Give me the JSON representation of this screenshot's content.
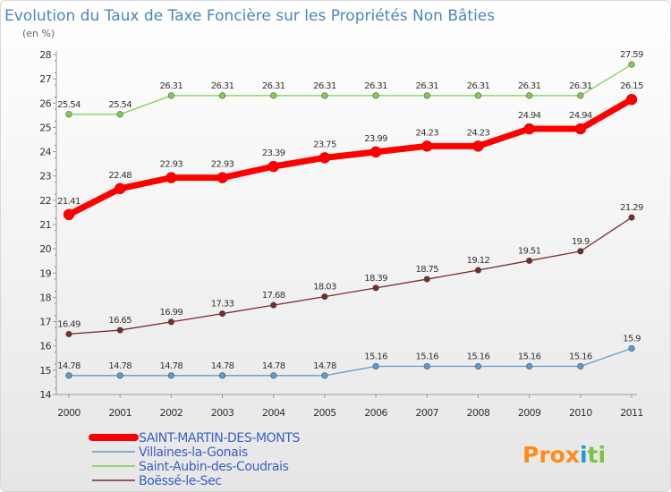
{
  "chart_data": {
    "type": "line",
    "title": "Evolution du Taux de Taxe Foncière sur les Propriétés Non Bâties",
    "unit_label": "(en %)",
    "x": [
      "2000",
      "2001",
      "2002",
      "2003",
      "2004",
      "2005",
      "2006",
      "2007",
      "2008",
      "2009",
      "2010",
      "2011"
    ],
    "ylim": [
      14,
      28
    ],
    "yticks": [
      "14",
      "15",
      "16",
      "17",
      "18",
      "19",
      "20",
      "21",
      "22",
      "23",
      "24",
      "25",
      "26",
      "27",
      "28"
    ],
    "grid": false,
    "legend_position": "bottom-left",
    "series": [
      {
        "name": "SAINT-MARTIN-DES-MONTS",
        "color": "#ff0000",
        "values": [
          21.41,
          22.48,
          22.93,
          22.93,
          23.39,
          23.75,
          23.99,
          24.23,
          24.23,
          24.94,
          24.94,
          26.15
        ],
        "labels": [
          "21.41",
          "22.48",
          "22.93",
          "22.93",
          "23.39",
          "23.75",
          "23.99",
          "24.23",
          "24.23",
          "24.94",
          "24.94",
          "26.15"
        ]
      },
      {
        "name": "Villaines-la-Gonais",
        "color": "#5b9bd5",
        "values": [
          14.78,
          14.78,
          14.78,
          14.78,
          14.78,
          14.78,
          15.16,
          15.16,
          15.16,
          15.16,
          15.16,
          15.9
        ],
        "labels": [
          "14.78",
          "14.78",
          "14.78",
          "14.78",
          "14.78",
          "14.78",
          "15.16",
          "15.16",
          "15.16",
          "15.16",
          "15.16",
          "15.9"
        ]
      },
      {
        "name": "Saint-Aubin-des-Coudrais",
        "color": "#7ecf4e",
        "values": [
          25.54,
          25.54,
          26.31,
          26.31,
          26.31,
          26.31,
          26.31,
          26.31,
          26.31,
          26.31,
          26.31,
          27.59
        ],
        "labels": [
          "25.54",
          "25.54",
          "26.31",
          "26.31",
          "26.31",
          "26.31",
          "26.31",
          "26.31",
          "26.31",
          "26.31",
          "26.31",
          "27.59"
        ]
      },
      {
        "name": "Boëssé-le-Sec",
        "color": "#7a2a2a",
        "values": [
          16.49,
          16.65,
          16.99,
          17.33,
          17.68,
          18.03,
          18.39,
          18.75,
          19.12,
          19.51,
          19.9,
          21.29
        ],
        "labels": [
          "16.49",
          "16.65",
          "16.99",
          "17.33",
          "17.68",
          "18.03",
          "18.39",
          "18.75",
          "19.12",
          "19.51",
          "19.9",
          "21.29"
        ]
      }
    ]
  },
  "logo": {
    "text": "Prox",
    "highlight": "i",
    "text2": "ti",
    "colors": [
      "#ff8c1a",
      "#f2a900",
      "#1a9bd7",
      "#7dc242"
    ]
  }
}
